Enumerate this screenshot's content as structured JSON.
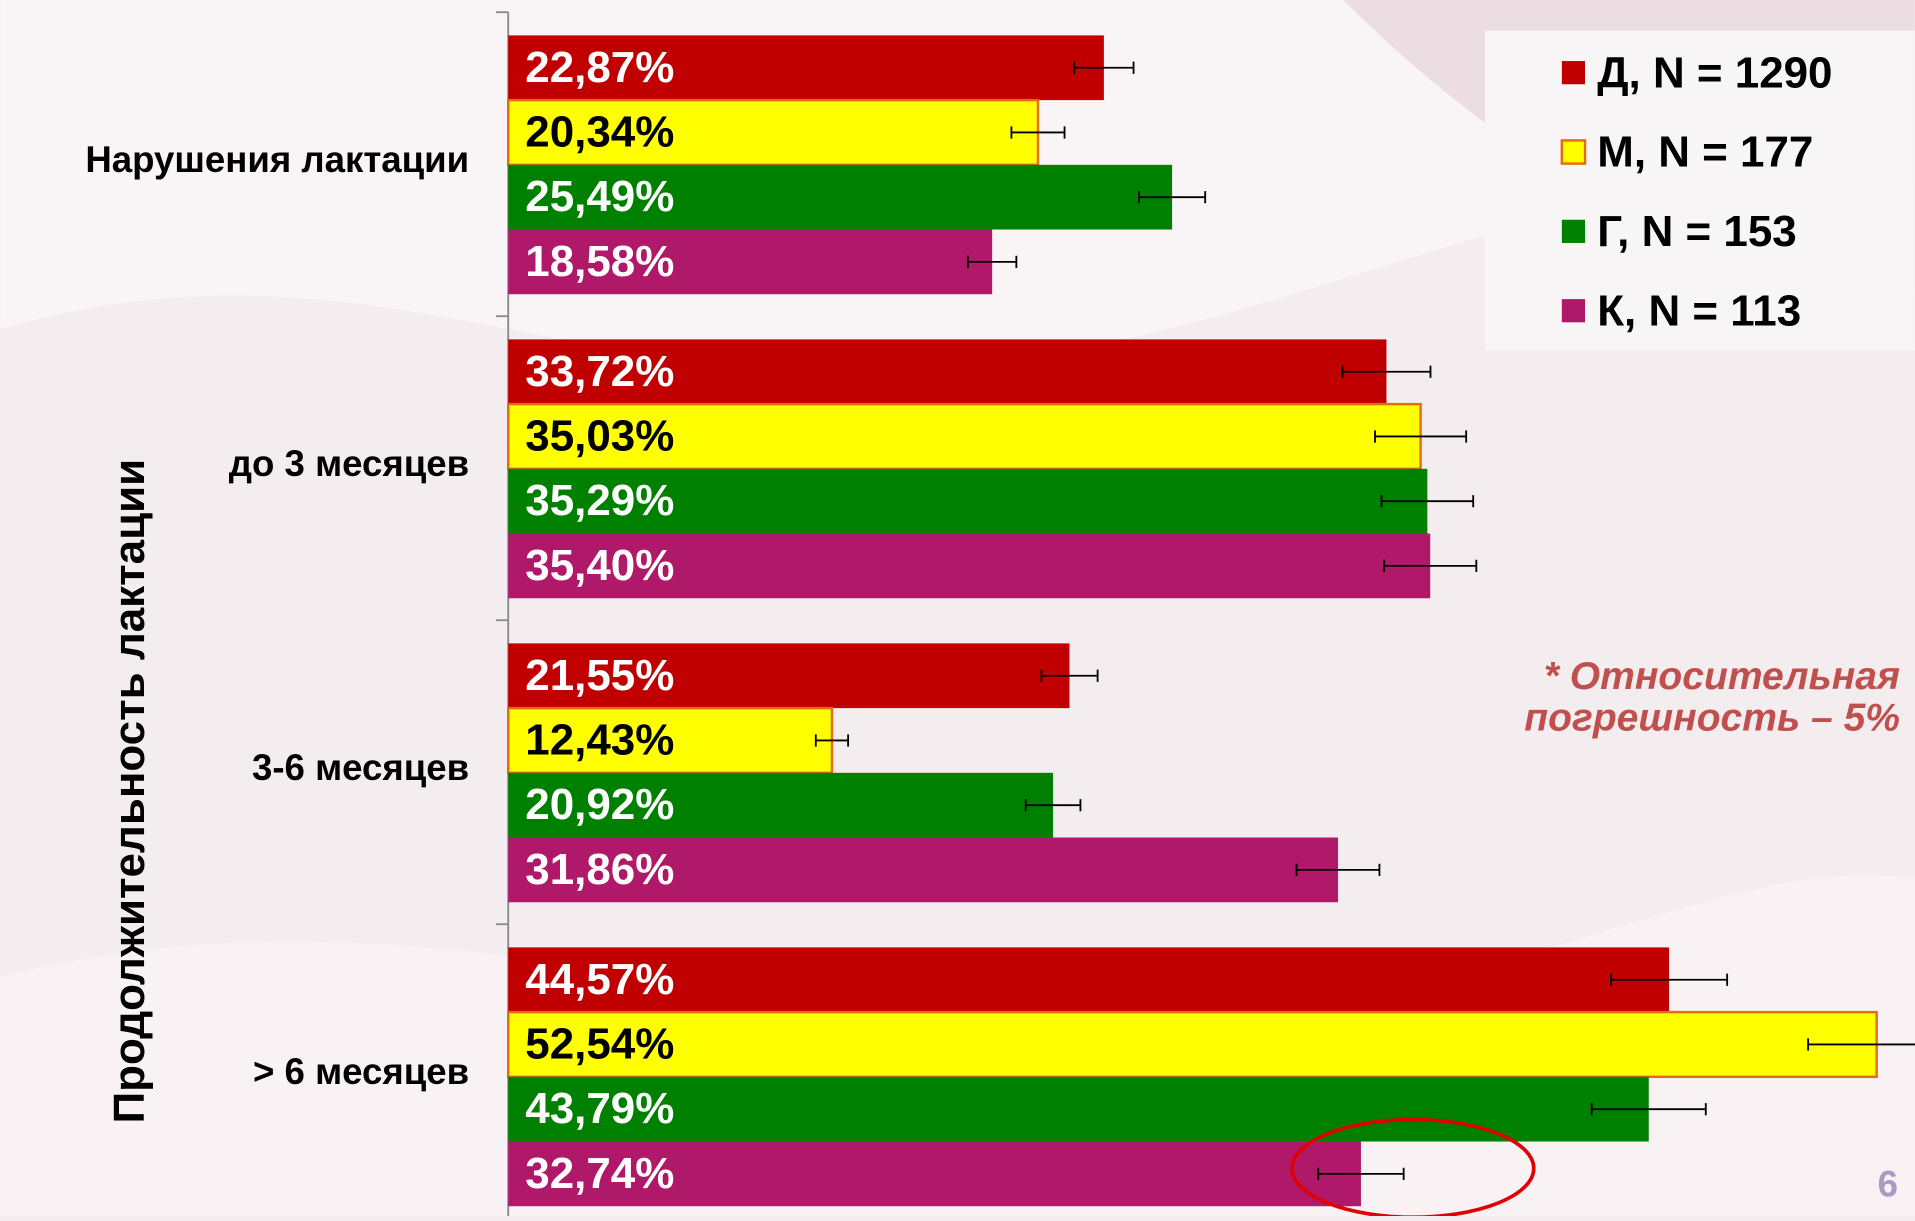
{
  "chart_data": {
    "type": "bar",
    "orientation": "horizontal",
    "y_axis_label": "Продолжительность лактации",
    "categories": [
      "Нарушения лактации",
      "до 3 месяцев",
      "3-6 месяцев",
      "> 6 месяцев"
    ],
    "series": [
      {
        "name": "Д, N = 1290",
        "color": "#c00000",
        "values": [
          22.87,
          33.72,
          21.55,
          44.57
        ],
        "value_labels": [
          "22,87%",
          "33,72%",
          "21,55%",
          "44,57%"
        ],
        "errors": [
          1.14,
          1.69,
          1.08,
          2.23
        ]
      },
      {
        "name": "М, N = 177",
        "color": "#ffff00",
        "values": [
          20.34,
          35.03,
          12.43,
          52.54
        ],
        "value_labels": [
          "20,34%",
          "35,03%",
          "12,43%",
          "52,54%"
        ],
        "errors": [
          1.02,
          1.75,
          0.62,
          2.63
        ]
      },
      {
        "name": "Г, N = 153",
        "color": "#008000",
        "values": [
          25.49,
          35.29,
          20.92,
          43.79
        ],
        "value_labels": [
          "25,49%",
          "35,29%",
          "20,92%",
          "43,79%"
        ],
        "errors": [
          1.27,
          1.76,
          1.05,
          2.19
        ]
      },
      {
        "name": "К, N = 113",
        "color": "#b0186a",
        "values": [
          18.58,
          35.4,
          31.86,
          32.74
        ],
        "value_labels": [
          "18,58%",
          "35,40%",
          "31,86%",
          "32,74%"
        ],
        "errors": [
          0.93,
          1.77,
          1.59,
          1.64
        ]
      }
    ],
    "xlim": [
      0,
      54
    ],
    "legend": "top-right",
    "annotation": [
      "* Относительная",
      "погрешность – 5%"
    ],
    "page_number": "6"
  }
}
